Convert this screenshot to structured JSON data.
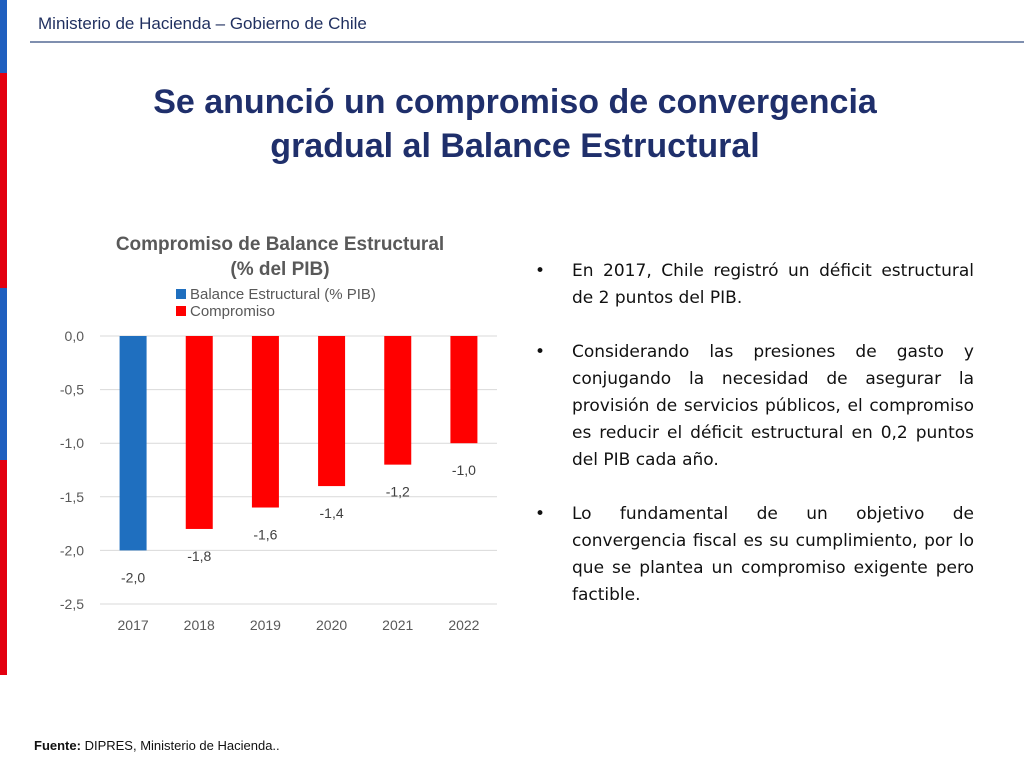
{
  "header": {
    "text": "Ministerio de Hacienda – Gobierno de Chile"
  },
  "slide": {
    "title_line1": "Se anunció un compromiso de convergencia",
    "title_line2": "gradual al Balance Estructural"
  },
  "bullets": [
    "En 2017, Chile registró un déficit estructural de 2 puntos del PIB.",
    "Considerando las presiones de gasto y conjugando la necesidad de asegurar la provisión de servicios públicos, el compromiso es reducir el déficit estructural en 0,2 puntos del PIB cada año.",
    "Lo fundamental de un objetivo de convergencia fiscal es su cumplimiento, por lo que se plantea un compromiso exigente pero factible."
  ],
  "footer": {
    "label": "Fuente:",
    "text": " DIPRES, Ministerio de Hacienda.."
  },
  "colors": {
    "blue": "#1f6fbf",
    "red": "#ff0000",
    "navy": "#1f2f6b",
    "sidebar_red": "#e3000f",
    "sidebar_blue": "#1f5fbf"
  },
  "chart_data": {
    "type": "bar",
    "title": "Compromiso de Balance Estructural",
    "subtitle": "(% del PIB)",
    "categories": [
      "2017",
      "2018",
      "2019",
      "2020",
      "2021",
      "2022"
    ],
    "series": [
      {
        "name": "Balance Estructural (% PIB)",
        "color": "#1f6fbf",
        "values": [
          -2.0,
          null,
          null,
          null,
          null,
          null
        ]
      },
      {
        "name": "Compromiso",
        "color": "#ff0000",
        "values": [
          null,
          -1.8,
          -1.6,
          -1.4,
          -1.2,
          -1.0
        ]
      }
    ],
    "data_labels": [
      "-2,0",
      "-1,8",
      "-1,6",
      "-1,4",
      "-1,2",
      "-1,0"
    ],
    "yticks": [
      0.0,
      -0.5,
      -1.0,
      -1.5,
      -2.0,
      -2.5
    ],
    "ytick_labels": [
      "0,0",
      "-0,5",
      "-1,0",
      "-1,5",
      "-2,0",
      "-2,5"
    ],
    "ylim": [
      -2.5,
      0.0
    ],
    "grid": true,
    "legend": "top"
  }
}
